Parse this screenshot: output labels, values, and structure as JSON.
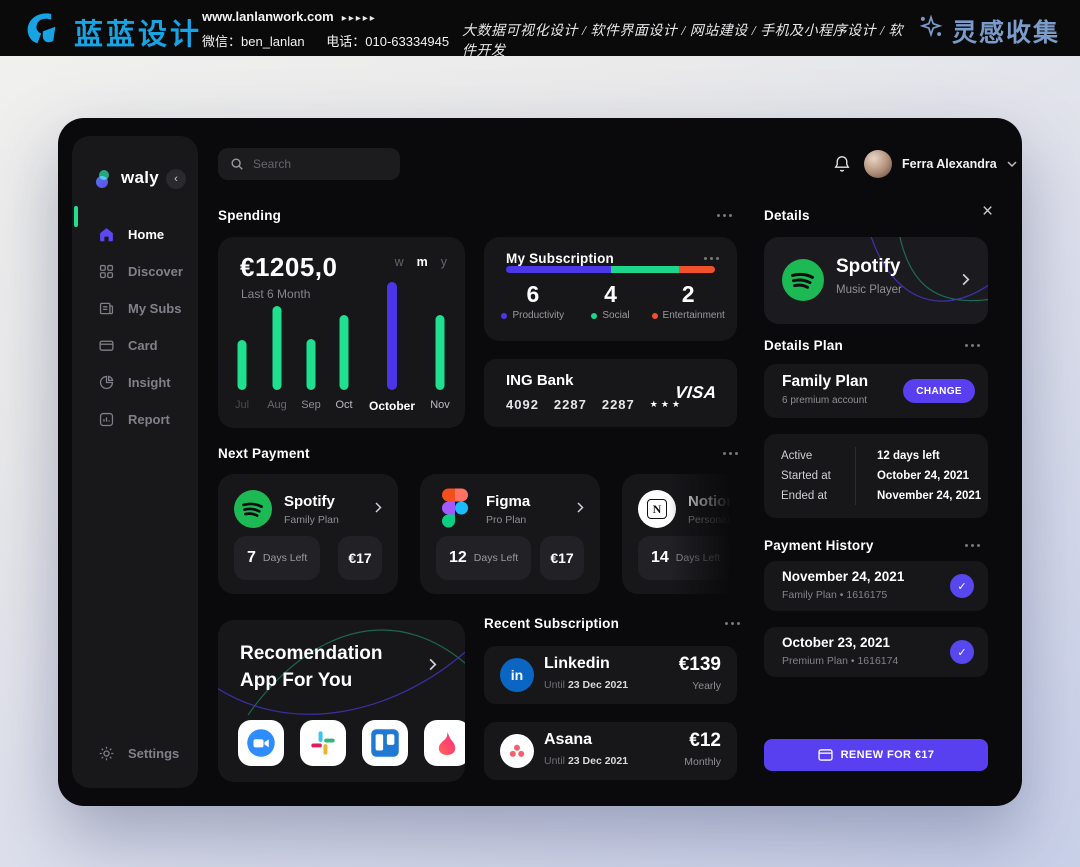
{
  "colors": {
    "accent": "#5840f1",
    "green": "#1ee08f",
    "orange": "#f1512a",
    "spotify_green": "#1db954",
    "banner_blue": "#17a3e4",
    "collect_blue": "#7b9bca"
  },
  "banner": {
    "logo_text": "蓝蓝设计",
    "site": "www.lanlanwork.com",
    "arrows": "▸▸▸▸▸",
    "wechat": "微信：ben_lanlan",
    "phone": "电话：010-63334945",
    "services": "大数据可视化设计 / 软件界面设计 / 网站建设 / 手机及小程序设计 / 软件开发",
    "collect": "灵感收集"
  },
  "sidebar": {
    "logo": "waly",
    "items": [
      {
        "label": "Home",
        "active": true
      },
      {
        "label": "Discover",
        "active": false
      },
      {
        "label": "My Subs",
        "active": false
      },
      {
        "label": "Card",
        "active": false
      },
      {
        "label": "Insight",
        "active": false
      },
      {
        "label": "Report",
        "active": false
      }
    ],
    "settings_label": "Settings"
  },
  "topbar": {
    "search_placeholder": "Search",
    "user_name": "Ferra Alexandra"
  },
  "spending": {
    "title": "Spending",
    "amount": "€1205,0",
    "subtitle": "Last 6 Month",
    "ranges": [
      "w",
      "m",
      "y"
    ],
    "selected_range": "m",
    "chart_data": {
      "type": "bar",
      "title": "Spending",
      "subtitle": "Last 6 Month",
      "total_label": "€1205,0",
      "categories": [
        "Jul",
        "Aug",
        "Sep",
        "Oct",
        "October",
        "Nov"
      ],
      "values": [
        50,
        84,
        51,
        75,
        108,
        75
      ],
      "value_unit": "relative bar height (px), no numeric axis shown",
      "highlight_index": 4,
      "bar_color": "#1ee08f",
      "highlight_color": "#4c34e8",
      "label_colors": [
        "#4b4b50",
        "#68686d",
        "#8e8e93",
        "#bcbcc0",
        "#ffffff",
        "#bcbcc0"
      ]
    }
  },
  "subscription": {
    "title": "My Subscription",
    "segments": [
      {
        "label": "Productivity",
        "value": "6",
        "color": "#4c37e9",
        "pct": 50
      },
      {
        "label": "Social",
        "value": "4",
        "color": "#1ed58c",
        "pct": 33
      },
      {
        "label": "Entertainment",
        "value": "2",
        "color": "#f1512a",
        "pct": 17
      }
    ]
  },
  "bank": {
    "name": "ING Bank",
    "groups": [
      "4092",
      "2287",
      "2287"
    ],
    "masked": "★★★",
    "brand": "VISA"
  },
  "next_payment": {
    "title": "Next Payment",
    "cards": [
      {
        "name": "Spotify",
        "plan": "Family Plan",
        "days": "7",
        "days_label": "Days Left",
        "price": "€17",
        "icon": "spotify-icon"
      },
      {
        "name": "Figma",
        "plan": "Pro Plan",
        "days": "12",
        "days_label": "Days Left",
        "price": "€17",
        "icon": "figma-icon"
      },
      {
        "name": "Notion",
        "plan": "Personal Pro",
        "days": "14",
        "days_label": "Days Left",
        "icon": "notion-icon"
      }
    ]
  },
  "recommendation": {
    "title_line1": "Recomendation",
    "title_line2": "App For You",
    "apps": [
      "zoom",
      "slack",
      "trello",
      "tinder"
    ]
  },
  "recent": {
    "title": "Recent Subscription",
    "items": [
      {
        "name": "Linkedin",
        "until_label": "Until",
        "date": "23 Dec 2021",
        "price": "€139",
        "cycle": "Yearly",
        "icon": "linkedin-icon"
      },
      {
        "name": "Asana",
        "until_label": "Until",
        "date": "23 Dec 2021",
        "price": "€12",
        "cycle": "Monthly",
        "icon": "asana-icon"
      }
    ]
  },
  "details": {
    "title": "Details",
    "app": {
      "name": "Spotify",
      "subtitle": "Music Player"
    },
    "plan_section": "Details Plan",
    "plan": {
      "name": "Family Plan",
      "desc": "6 premium account",
      "button": "CHANGE"
    },
    "status": [
      {
        "label": "Active",
        "value": "12 days left"
      },
      {
        "label": "Started at",
        "value": "October 24, 2021"
      },
      {
        "label": "Ended at",
        "value": "November 24, 2021"
      }
    ],
    "history_title": "Payment History",
    "history": [
      {
        "date": "November 24, 2021",
        "plan": "Family Plan • 1616175"
      },
      {
        "date": "October 23, 2021",
        "plan": "Premium Plan • 1616174"
      }
    ],
    "renew_label": "RENEW FOR €17"
  }
}
